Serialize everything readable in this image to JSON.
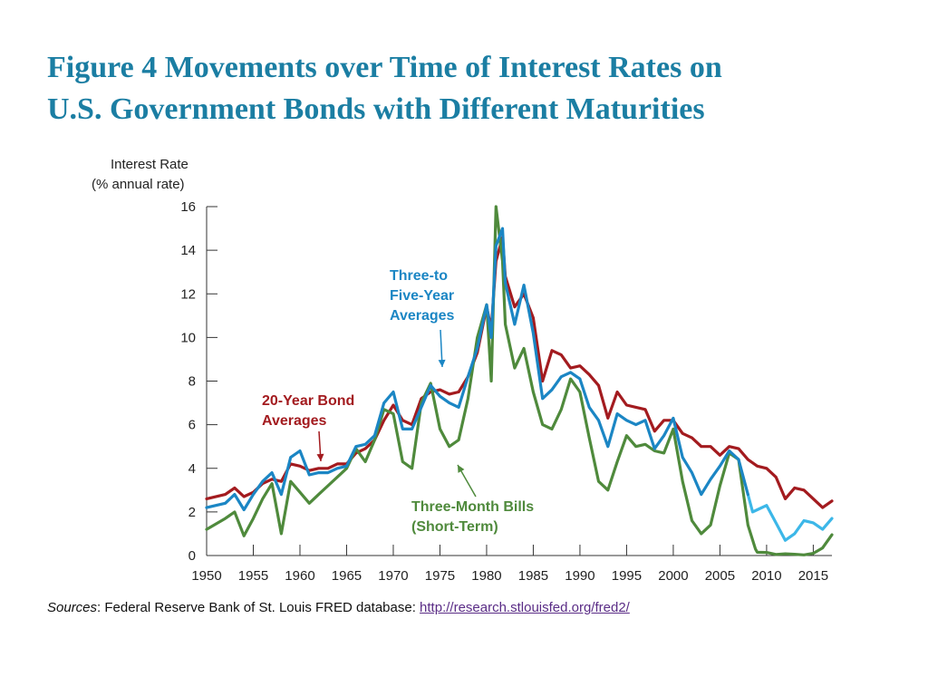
{
  "title": {
    "line1": "Figure 4 Movements over Time of Interest Rates on",
    "line2": "U.S. Government Bonds with Different Maturities"
  },
  "sources": {
    "label": "Sources",
    "text": ": Federal Reserve Bank of St. Louis FRED database: ",
    "link_text": "http://research.stlouisfed.org/fred2/"
  },
  "colors": {
    "title": "#1b7ea3",
    "bond20": "#a31b1f",
    "five_year": "#1b86c4",
    "five_year_late": "#3cb7e8",
    "bills": "#4f8a3c",
    "link": "#5a2c86"
  },
  "chart_data": {
    "type": "line",
    "ylabel_line1": "Interest Rate",
    "ylabel_line2": "(% annual rate)",
    "xlim": [
      1950,
      2017
    ],
    "ylim": [
      0,
      16
    ],
    "x_ticks": [
      "1950",
      "1955",
      "1960",
      "1965",
      "1970",
      "1975",
      "1980",
      "1985",
      "1990",
      "1995",
      "2000",
      "2005",
      "2010",
      "2015"
    ],
    "y_ticks": [
      "0",
      "2",
      "4",
      "6",
      "8",
      "10",
      "12",
      "14",
      "16"
    ],
    "annotations": [
      {
        "name": "five-year",
        "lines": [
          "Three-to",
          "Five-Year",
          "Averages"
        ],
        "color": "#1b86c4"
      },
      {
        "name": "bond20",
        "lines": [
          "20-Year Bond",
          "Averages"
        ],
        "color": "#a31b1f"
      },
      {
        "name": "bills",
        "lines": [
          "Three-Month Bills",
          "(Short-Term)"
        ],
        "color": "#4f8a3c"
      }
    ],
    "series": [
      {
        "key": "bond20",
        "color": "#a31b1f",
        "x": [
          1950,
          1952,
          1953,
          1954,
          1955,
          1956,
          1957,
          1958,
          1959,
          1960,
          1961,
          1962,
          1963,
          1964,
          1965,
          1966,
          1967,
          1968,
          1969,
          1970,
          1971,
          1972,
          1973,
          1974,
          1975,
          1976,
          1977,
          1978,
          1979,
          1980,
          1980.5,
          1981,
          1981.7,
          1982,
          1983,
          1984,
          1985,
          1986,
          1987,
          1988,
          1989,
          1990,
          1991,
          1992,
          1993,
          1994,
          1995,
          1996,
          1997,
          1998,
          1999,
          2000,
          2001,
          2002,
          2003,
          2004,
          2005,
          2006,
          2007,
          2008,
          2009,
          2010,
          2011,
          2012,
          2013,
          2014,
          2015,
          2016,
          2017
        ],
        "y": [
          2.6,
          2.8,
          3.1,
          2.7,
          2.9,
          3.3,
          3.5,
          3.4,
          4.2,
          4.1,
          3.9,
          4.0,
          4.0,
          4.2,
          4.2,
          4.7,
          4.9,
          5.3,
          6.2,
          6.9,
          6.2,
          6.0,
          7.2,
          7.5,
          7.6,
          7.4,
          7.5,
          8.2,
          9.3,
          11.4,
          10.4,
          13.5,
          14.6,
          12.8,
          11.4,
          12.0,
          10.9,
          8.0,
          9.4,
          9.2,
          8.6,
          8.7,
          8.3,
          7.8,
          6.3,
          7.5,
          6.9,
          6.8,
          6.7,
          5.7,
          6.2,
          6.2,
          5.6,
          5.4,
          5.0,
          5.0,
          4.6,
          5.0,
          4.9,
          4.4,
          4.1,
          4.0,
          3.6,
          2.6,
          3.1,
          3.0,
          2.6,
          2.2,
          2.5
        ]
      },
      {
        "key": "five_year",
        "color": "#1b86c4",
        "x": [
          1950,
          1952,
          1953,
          1954,
          1955,
          1956,
          1957,
          1958,
          1959,
          1960,
          1961,
          1962,
          1963,
          1964,
          1965,
          1966,
          1967,
          1968,
          1969,
          1970,
          1971,
          1972,
          1973,
          1974,
          1975,
          1976,
          1977,
          1978,
          1979,
          1980,
          1980.5,
          1981,
          1981.7,
          1982,
          1983,
          1984,
          1985,
          1986,
          1987,
          1988,
          1989,
          1990,
          1991,
          1992,
          1993,
          1994,
          1995,
          1996,
          1997,
          1998,
          1999,
          2000,
          2001,
          2002,
          2003,
          2004,
          2005,
          2006,
          2007,
          2008
        ],
        "y": [
          2.2,
          2.4,
          2.8,
          2.1,
          2.8,
          3.4,
          3.8,
          2.8,
          4.5,
          4.8,
          3.7,
          3.8,
          3.8,
          4.0,
          4.1,
          5.0,
          5.1,
          5.5,
          7.0,
          7.5,
          5.8,
          5.8,
          6.8,
          7.8,
          7.3,
          7.0,
          6.8,
          8.2,
          9.5,
          11.5,
          10.0,
          14.2,
          15.0,
          12.5,
          10.6,
          12.4,
          10.2,
          7.2,
          7.6,
          8.2,
          8.4,
          8.1,
          6.8,
          6.2,
          5.0,
          6.5,
          6.2,
          6.0,
          6.2,
          4.9,
          5.5,
          6.3,
          4.5,
          3.8,
          2.8,
          3.5,
          4.1,
          4.8,
          4.4,
          2.8
        ]
      },
      {
        "key": "five_year_late",
        "color": "#3cb7e8",
        "x": [
          2008,
          2008.5,
          2009,
          2010,
          2011,
          2012,
          2013,
          2014,
          2015,
          2016,
          2017
        ],
        "y": [
          2.8,
          2.0,
          2.1,
          2.3,
          1.5,
          0.7,
          1.0,
          1.6,
          1.5,
          1.2,
          1.7
        ]
      },
      {
        "key": "bills",
        "color": "#4f8a3c",
        "x": [
          1950,
          1952,
          1953,
          1954,
          1955,
          1956,
          1957,
          1958,
          1959,
          1960,
          1961,
          1962,
          1963,
          1964,
          1965,
          1966,
          1967,
          1968,
          1969,
          1970,
          1971,
          1972,
          1973,
          1974,
          1975,
          1976,
          1977,
          1978,
          1979,
          1980,
          1980.5,
          1981,
          1981.7,
          1982,
          1983,
          1984,
          1985,
          1986,
          1987,
          1988,
          1989,
          1990,
          1991,
          1992,
          1993,
          1994,
          1995,
          1996,
          1997,
          1998,
          1999,
          2000,
          2001,
          2002,
          2003,
          2004,
          2005,
          2006,
          2007,
          2008,
          2008.8,
          2009,
          2010,
          2011,
          2012,
          2013,
          2014,
          2015,
          2016,
          2017
        ],
        "y": [
          1.2,
          1.7,
          2.0,
          0.9,
          1.7,
          2.6,
          3.3,
          1.0,
          3.4,
          2.9,
          2.4,
          2.8,
          3.2,
          3.6,
          4.0,
          4.9,
          4.3,
          5.3,
          6.7,
          6.5,
          4.3,
          4.0,
          7.0,
          7.9,
          5.8,
          5.0,
          5.3,
          7.2,
          10.0,
          11.5,
          8.0,
          16.0,
          13.5,
          10.6,
          8.6,
          9.5,
          7.5,
          6.0,
          5.8,
          6.7,
          8.1,
          7.5,
          5.4,
          3.4,
          3.0,
          4.3,
          5.5,
          5.0,
          5.1,
          4.8,
          4.7,
          5.8,
          3.4,
          1.6,
          1.0,
          1.4,
          3.2,
          4.7,
          4.4,
          1.4,
          0.3,
          0.15,
          0.14,
          0.05,
          0.08,
          0.06,
          0.03,
          0.1,
          0.35,
          0.95
        ]
      }
    ]
  }
}
